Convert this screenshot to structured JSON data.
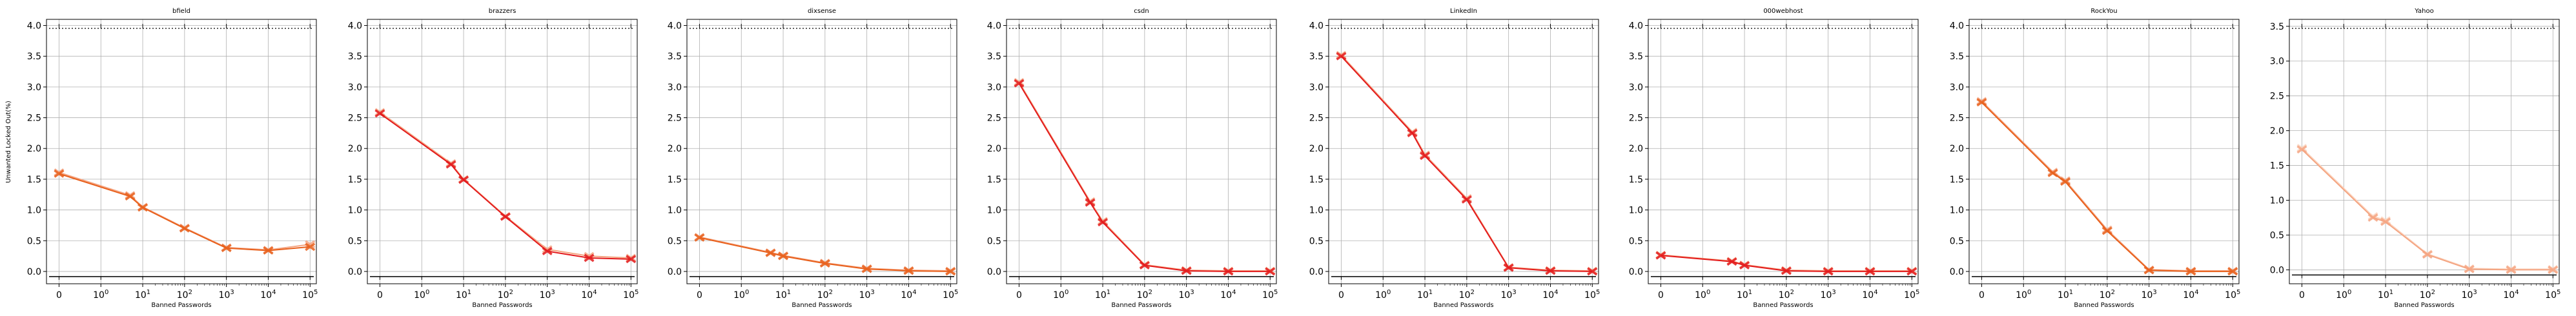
{
  "figure": {
    "ylabel": "Unwanted Locked Out(%)",
    "xlabel": "Banned Passwords"
  },
  "chart_data": [
    {
      "type": "line",
      "title": "bfield",
      "xlabel": "Banned Passwords",
      "ylabel": "Unwanted Locked Out(%)",
      "xscale": "symlog",
      "ylim": [
        -0.2,
        4.1
      ],
      "yticks": [
        "0.0",
        "0.5",
        "1.0",
        "1.5",
        "2.0",
        "2.5",
        "3.0",
        "3.5",
        "4.0"
      ],
      "xtick_labels": [
        "0",
        "10^0",
        "10^1",
        "10^2",
        "10^3",
        "10^4",
        "10^5"
      ],
      "grid": true,
      "series": [
        {
          "color": "#e8601c",
          "x": [
            0,
            5,
            10,
            100,
            1000,
            10000,
            100000
          ],
          "y": [
            1.59,
            1.22,
            1.04,
            0.7,
            0.38,
            0.34,
            0.4
          ]
        },
        {
          "color": "#f4a582",
          "x": [
            0,
            5,
            10,
            100,
            1000,
            10000,
            100000
          ],
          "y": [
            1.61,
            1.24,
            1.05,
            0.71,
            0.39,
            0.35,
            0.44
          ]
        }
      ]
    },
    {
      "type": "line",
      "title": "brazzers",
      "xlabel": "Banned Passwords",
      "xscale": "symlog",
      "ylim": [
        -0.2,
        4.1
      ],
      "yticks": [
        "0.0",
        "0.5",
        "1.0",
        "1.5",
        "2.0",
        "2.5",
        "3.0",
        "3.5",
        "4.0"
      ],
      "xtick_labels": [
        "0",
        "10^0",
        "10^1",
        "10^2",
        "10^3",
        "10^4",
        "10^5"
      ],
      "grid": true,
      "series": [
        {
          "color": "#e31a1c",
          "x": [
            0,
            5,
            10,
            100,
            1000,
            10000,
            100000
          ],
          "y": [
            2.57,
            1.74,
            1.49,
            0.89,
            0.33,
            0.22,
            0.2
          ]
        },
        {
          "color": "#f4a582",
          "x": [
            0,
            5,
            10,
            100,
            1000,
            10000,
            100000
          ],
          "y": [
            2.59,
            1.76,
            1.5,
            0.9,
            0.36,
            0.25,
            0.22
          ]
        }
      ]
    },
    {
      "type": "line",
      "title": "dixsense",
      "xlabel": "Banned Passwords",
      "xscale": "symlog",
      "ylim": [
        -0.2,
        4.1
      ],
      "yticks": [
        "0.0",
        "0.5",
        "1.0",
        "1.5",
        "2.0",
        "2.5",
        "3.0",
        "3.5",
        "4.0"
      ],
      "xtick_labels": [
        "0",
        "10^0",
        "10^1",
        "10^2",
        "10^3",
        "10^4",
        "10^5"
      ],
      "grid": true,
      "series": [
        {
          "color": "#e8601c",
          "x": [
            0,
            5,
            10,
            100,
            1000,
            10000,
            100000
          ],
          "y": [
            0.55,
            0.3,
            0.25,
            0.13,
            0.04,
            0.01,
            0.0
          ]
        },
        {
          "color": "#f4a582",
          "x": [
            0,
            5,
            10,
            100,
            1000,
            10000,
            100000
          ],
          "y": [
            0.56,
            0.31,
            0.26,
            0.14,
            0.05,
            0.02,
            0.01
          ]
        }
      ]
    },
    {
      "type": "line",
      "title": "csdn",
      "xlabel": "Banned Passwords",
      "xscale": "symlog",
      "ylim": [
        -0.2,
        4.1
      ],
      "yticks": [
        "0.0",
        "0.5",
        "1.0",
        "1.5",
        "2.0",
        "2.5",
        "3.0",
        "3.5",
        "4.0"
      ],
      "xtick_labels": [
        "0",
        "10^0",
        "10^1",
        "10^2",
        "10^3",
        "10^4",
        "10^5"
      ],
      "grid": true,
      "series": [
        {
          "color": "#e31a1c",
          "x": [
            0,
            5,
            10,
            100,
            1000,
            10000,
            100000
          ],
          "y": [
            3.06,
            1.12,
            0.8,
            0.1,
            0.01,
            0.0,
            0.0
          ]
        },
        {
          "color": "#f4a582",
          "x": [
            0,
            5,
            10,
            100,
            1000,
            10000,
            100000
          ],
          "y": [
            3.08,
            1.14,
            0.82,
            0.11,
            0.02,
            0.01,
            0.01
          ]
        }
      ]
    },
    {
      "type": "line",
      "title": "LinkedIn",
      "xlabel": "Banned Passwords",
      "xscale": "symlog",
      "ylim": [
        -0.2,
        4.1
      ],
      "yticks": [
        "0.0",
        "0.5",
        "1.0",
        "1.5",
        "2.0",
        "2.5",
        "3.0",
        "3.5",
        "4.0"
      ],
      "xtick_labels": [
        "0",
        "10^0",
        "10^1",
        "10^2",
        "10^3",
        "10^4",
        "10^5"
      ],
      "grid": true,
      "series": [
        {
          "color": "#e31a1c",
          "x": [
            0,
            5,
            10,
            100,
            1000,
            10000,
            100000
          ],
          "y": [
            3.5,
            2.25,
            1.88,
            1.17,
            0.06,
            0.01,
            0.0
          ]
        },
        {
          "color": "#f4a582",
          "x": [
            0,
            5,
            10,
            100,
            1000,
            10000,
            100000
          ],
          "y": [
            3.52,
            2.27,
            1.9,
            1.19,
            0.07,
            0.02,
            0.01
          ]
        }
      ]
    },
    {
      "type": "line",
      "title": "000webhost",
      "xlabel": "Banned Passwords",
      "xscale": "symlog",
      "ylim": [
        -0.2,
        4.1
      ],
      "yticks": [
        "0.0",
        "0.5",
        "1.0",
        "1.5",
        "2.0",
        "2.5",
        "3.0",
        "3.5",
        "4.0"
      ],
      "xtick_labels": [
        "0",
        "10^0",
        "10^1",
        "10^2",
        "10^3",
        "10^4",
        "10^5"
      ],
      "grid": true,
      "series": [
        {
          "color": "#e31a1c",
          "x": [
            0,
            5,
            10,
            100,
            1000,
            10000,
            100000
          ],
          "y": [
            0.26,
            0.16,
            0.1,
            0.01,
            0.0,
            0.0,
            0.0
          ]
        },
        {
          "color": "#f4a582",
          "x": [
            0,
            5,
            10,
            100,
            1000,
            10000,
            100000
          ],
          "y": [
            0.27,
            0.17,
            0.11,
            0.02,
            0.01,
            0.01,
            0.01
          ]
        }
      ]
    },
    {
      "type": "line",
      "title": "RockYou",
      "xlabel": "Banned Passwords",
      "xscale": "symlog",
      "ylim": [
        -0.2,
        4.1
      ],
      "yticks": [
        "0.0",
        "0.5",
        "1.0",
        "1.5",
        "2.0",
        "2.5",
        "3.0",
        "3.5",
        "4.0"
      ],
      "xtick_labels": [
        "0",
        "10^0",
        "10^1",
        "10^2",
        "10^3",
        "10^4",
        "10^5"
      ],
      "grid": true,
      "series": [
        {
          "color": "#e8601c",
          "x": [
            0,
            5,
            10,
            100,
            1000,
            10000,
            100000
          ],
          "y": [
            2.75,
            1.6,
            1.46,
            0.66,
            0.02,
            0.0,
            0.0
          ]
        },
        {
          "color": "#f4a582",
          "x": [
            0,
            5,
            10,
            100,
            1000,
            10000,
            100000
          ],
          "y": [
            2.77,
            1.62,
            1.48,
            0.68,
            0.03,
            0.01,
            0.01
          ]
        }
      ]
    },
    {
      "type": "line",
      "title": "Yahoo",
      "xlabel": "Banned Passwords",
      "xscale": "symlog",
      "ylim": [
        -0.2,
        3.6
      ],
      "yticks": [
        "0.0",
        "0.5",
        "1.0",
        "1.5",
        "2.0",
        "2.5",
        "3.0",
        "3.5"
      ],
      "xtick_labels": [
        "0",
        "10^0",
        "10^1",
        "10^2",
        "10^3",
        "10^4",
        "10^5"
      ],
      "grid": true,
      "series": [
        {
          "color": "#f4a582",
          "x": [
            0,
            5,
            10,
            100,
            1000,
            10000,
            100000
          ],
          "y": [
            1.73,
            0.75,
            0.69,
            0.22,
            0.01,
            0.0,
            0.0
          ]
        },
        {
          "color": "#fbd5c0",
          "x": [
            0,
            5,
            10,
            100,
            1000,
            10000,
            100000
          ],
          "y": [
            1.75,
            0.77,
            0.71,
            0.23,
            0.02,
            0.01,
            0.01
          ]
        }
      ]
    }
  ]
}
